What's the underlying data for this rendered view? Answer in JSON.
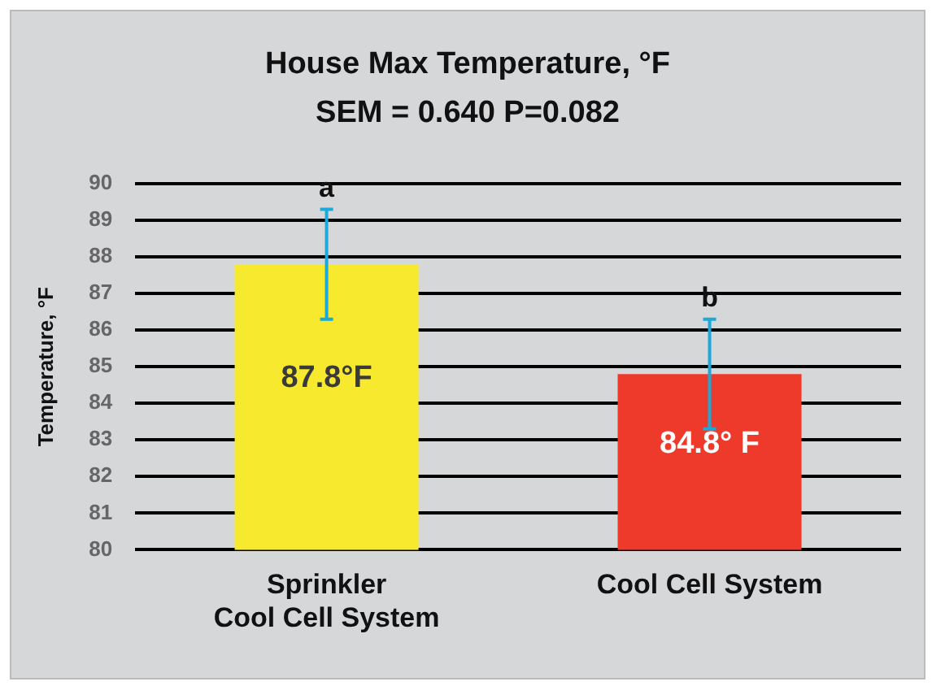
{
  "chart_data": {
    "type": "bar",
    "title": "House Max Temperature, °F",
    "subtitle": "SEM = 0.640  P=0.082",
    "ylabel": "Temperature, °F",
    "categories": [
      "Sprinkler\nCool Cell System",
      "Cool Cell System"
    ],
    "values": [
      87.8,
      84.8
    ],
    "colors": [
      "#f7e92d",
      "#ee3a2a"
    ],
    "errors": [
      1.5,
      1.5
    ],
    "value_labels": [
      "87.8°F",
      "84.8° F"
    ],
    "annotations": [
      {
        "text": "a",
        "x": "Sprinkler\nCool Cell System",
        "y": 89.3
      },
      {
        "text": "b",
        "x": "Cool Cell System",
        "y": 86.3
      }
    ],
    "ylim": [
      80,
      90
    ],
    "yticks": [
      80,
      81,
      82,
      83,
      84,
      85,
      86,
      87,
      88,
      89,
      90
    ],
    "grid": "y",
    "legend": false
  }
}
